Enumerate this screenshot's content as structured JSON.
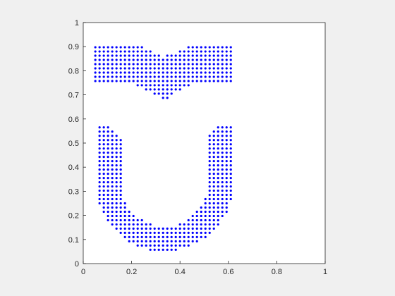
{
  "chart_data": {
    "type": "scatter",
    "title": "",
    "xlabel": "",
    "ylabel": "",
    "xlim": [
      0,
      1
    ],
    "ylim": [
      0,
      1
    ],
    "xticks": [
      0,
      0.2,
      0.4,
      0.6,
      0.8,
      1
    ],
    "yticks": [
      0,
      0.1,
      0.2,
      0.3,
      0.4,
      0.5,
      0.6,
      0.7,
      0.8,
      0.9,
      1
    ],
    "xtick_labels": [
      "0",
      "0.2",
      "0.4",
      "0.6",
      "0.8",
      "1"
    ],
    "ytick_labels": [
      "0",
      "0.1",
      "0.2",
      "0.3",
      "0.4",
      "0.5",
      "0.6",
      "0.7",
      "0.8",
      "0.9",
      "1"
    ],
    "marker_color": "#0000ff",
    "grid": false,
    "series": [
      {
        "shapes": [
          {
            "kind": "bar-with-notch",
            "x_range": [
              0.05,
              0.625
            ],
            "y_range": [
              0.755,
              0.91
            ],
            "top_notch": {
              "x_center": 0.335,
              "y_bottom": 0.86
            },
            "bottom_point": {
              "x": 0.335,
              "y": 0.68
            }
          },
          {
            "kind": "u-shape",
            "x_range": [
              0.05,
              0.625
            ],
            "y_top": 0.575,
            "center_x": 0.335,
            "outer_radius": 0.285,
            "inner_radius": 0.18,
            "arc_center_y": 0.335,
            "top_corner_bevel": 0.05
          }
        ],
        "grid_step": 0.0175
      }
    ]
  }
}
